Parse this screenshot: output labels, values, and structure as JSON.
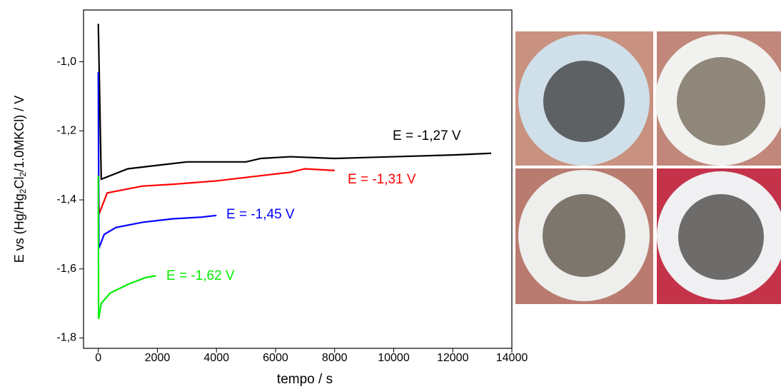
{
  "chart_data": {
    "type": "line",
    "y_label": [
      "E vs (Hg/Hg",
      "2",
      "Cl",
      "2",
      "/1.0MKCl) / V"
    ],
    "x_label": "tempo / s",
    "xlim": [
      -500,
      14000
    ],
    "xticks": [
      0,
      2000,
      4000,
      6000,
      8000,
      10000,
      12000,
      14000
    ],
    "ylim": [
      -1.83,
      -0.85
    ],
    "yticks": [
      {
        "value": -1.8,
        "label": "-1,8"
      },
      {
        "value": -1.6,
        "label": "-1,6"
      },
      {
        "value": -1.4,
        "label": "-1,4"
      },
      {
        "value": -1.2,
        "label": "-1,2"
      },
      {
        "value": -1.0,
        "label": "-1,0"
      }
    ],
    "series": [
      {
        "name": "E = -1,27 V",
        "color": "#000000",
        "x": [
          0,
          100,
          1000,
          2000,
          3000,
          4000,
          5000,
          5500,
          6500,
          8000,
          10000,
          12000,
          13300
        ],
        "values": [
          -0.89,
          -1.34,
          -1.31,
          -1.3,
          -1.29,
          -1.29,
          -1.29,
          -1.28,
          -1.275,
          -1.28,
          -1.275,
          -1.27,
          -1.265
        ]
      },
      {
        "name": "E = -1,31 V",
        "color": "#ff0000",
        "x": [
          0,
          30,
          300,
          1500,
          2500,
          4000,
          5000,
          6000,
          6500,
          7000,
          8000
        ],
        "values": [
          -1.34,
          -1.44,
          -1.38,
          -1.36,
          -1.355,
          -1.345,
          -1.335,
          -1.325,
          -1.32,
          -1.31,
          -1.315
        ]
      },
      {
        "name": "E = -1,45 V",
        "color": "#0000ff",
        "x": [
          0,
          20,
          200,
          600,
          1500,
          2500,
          3500,
          4000
        ],
        "values": [
          -1.03,
          -1.54,
          -1.5,
          -1.48,
          -1.465,
          -1.455,
          -1.45,
          -1.445
        ]
      },
      {
        "name": "E = -1,62 V",
        "color": "#00ee00",
        "x": [
          0,
          10,
          100,
          400,
          1000,
          1600,
          1950
        ],
        "values": [
          -1.33,
          -1.745,
          -1.7,
          -1.67,
          -1.645,
          -1.625,
          -1.62
        ]
      }
    ]
  }
}
